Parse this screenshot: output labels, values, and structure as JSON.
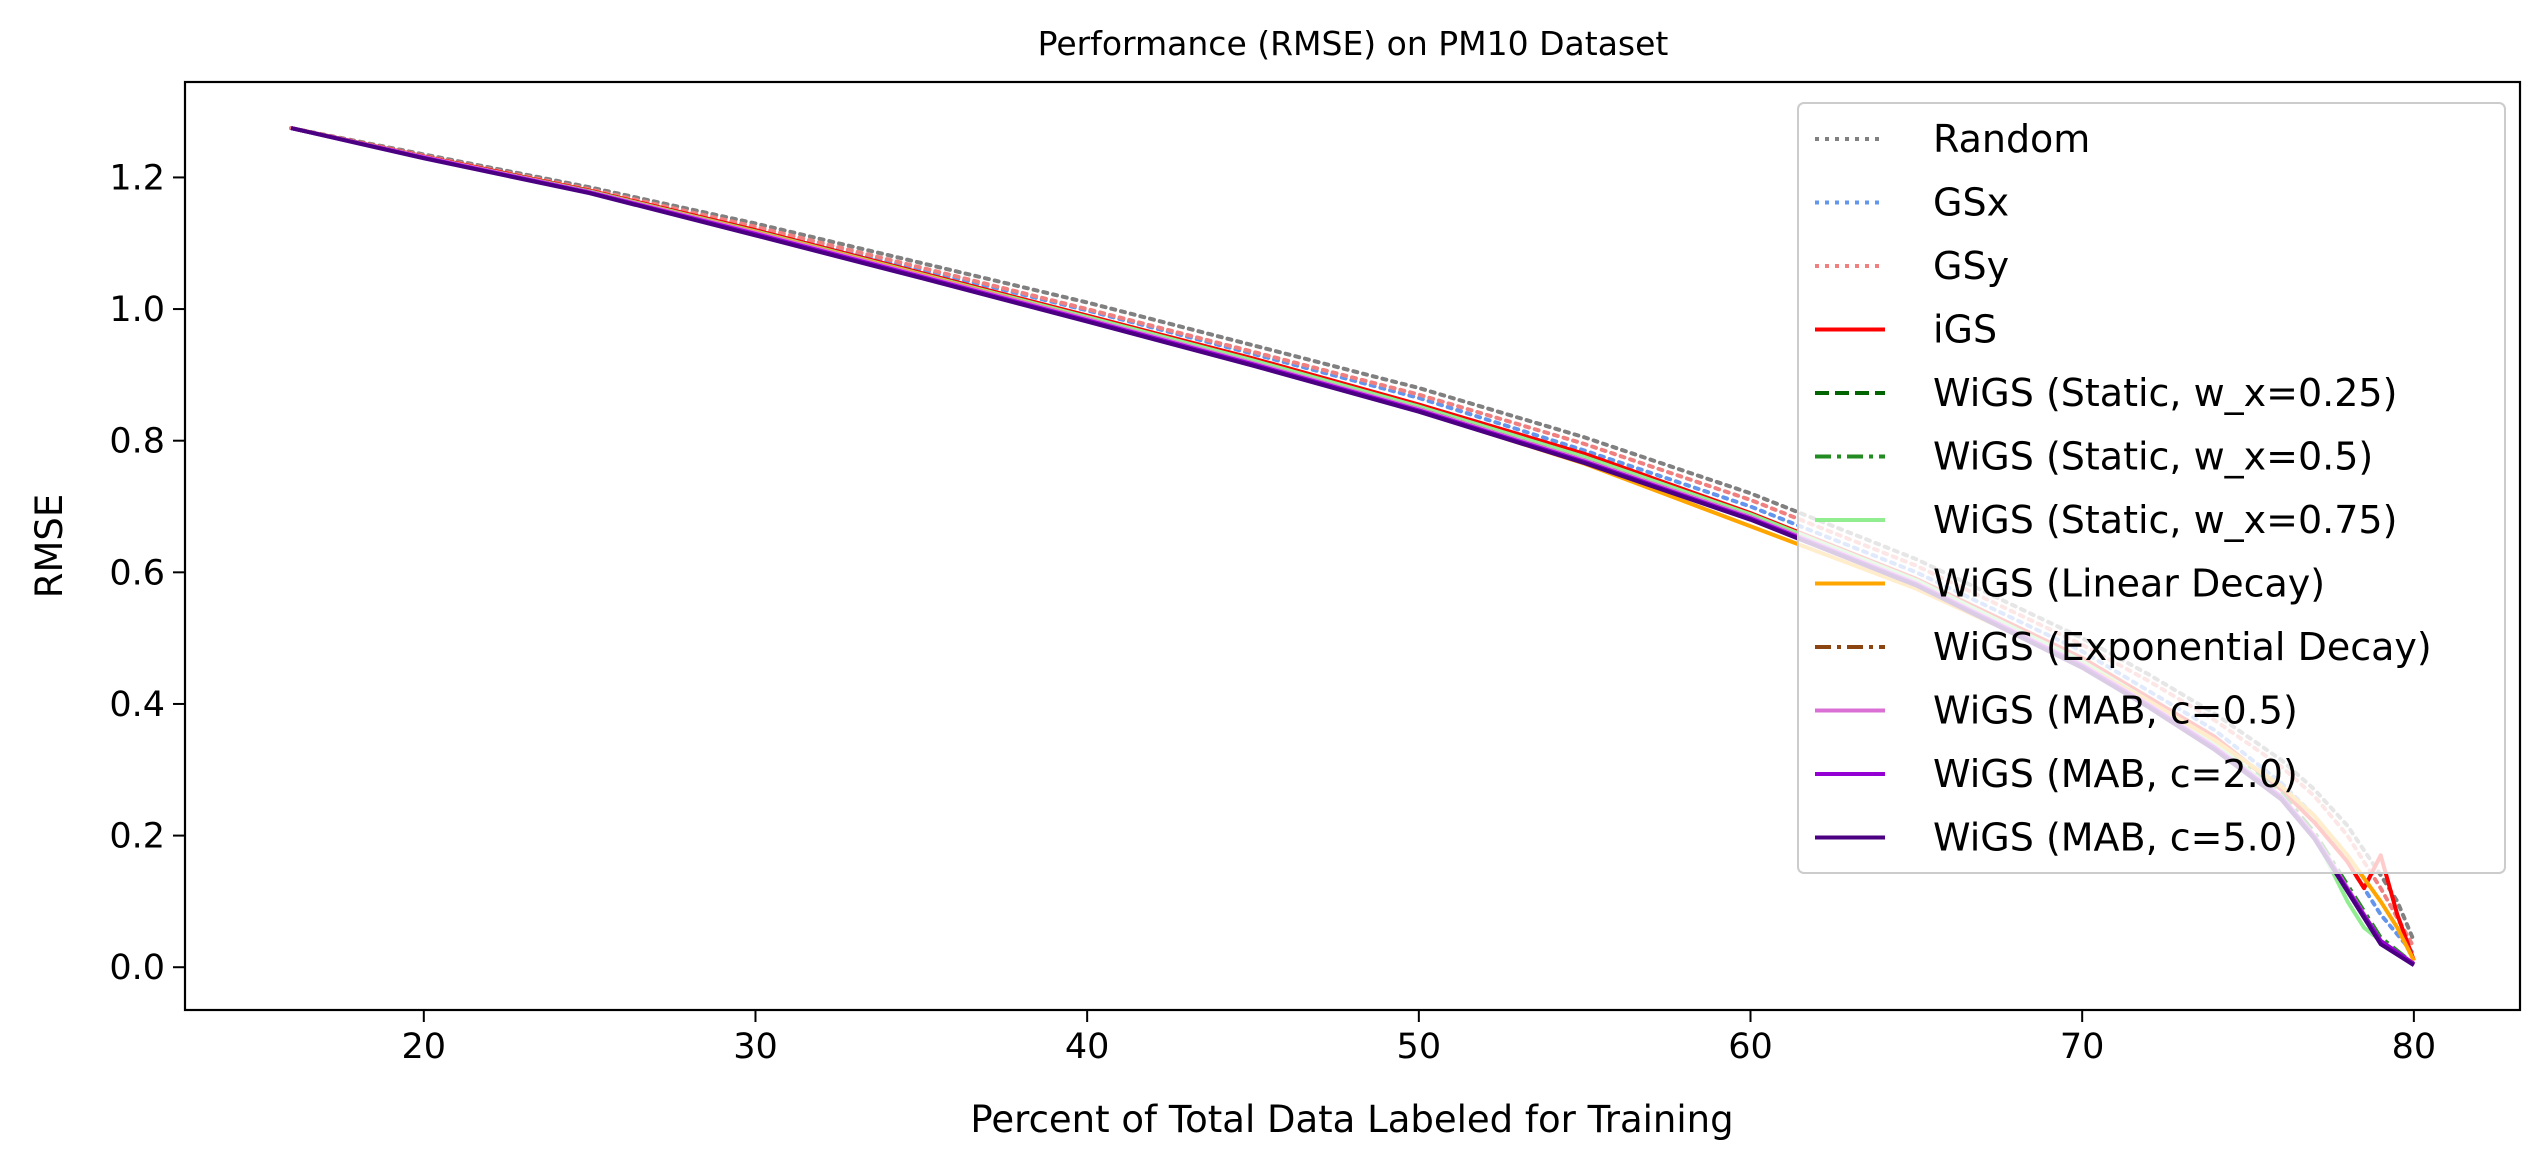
{
  "chart_data": {
    "type": "line",
    "title": "Performance (RMSE) on PM10 Dataset",
    "xlabel": "Percent of Total Data Labeled for Training",
    "ylabel": "RMSE",
    "xlim": [
      12.8,
      83.2
    ],
    "ylim": [
      -0.065,
      1.345
    ],
    "xticks": [
      20,
      30,
      40,
      50,
      60,
      70,
      80
    ],
    "xtick_labels": [
      "20",
      "30",
      "40",
      "50",
      "60",
      "70",
      "80"
    ],
    "yticks": [
      0.0,
      0.2,
      0.4,
      0.6,
      0.8,
      1.0,
      1.2
    ],
    "ytick_labels": [
      "0.0",
      "0.2",
      "0.4",
      "0.6",
      "0.8",
      "1.0",
      "1.2"
    ],
    "grid": false,
    "legend_position": "top-right",
    "series": [
      {
        "name": "Random",
        "color": "#808080",
        "style": "dotted",
        "x": [
          16,
          20,
          25,
          30,
          35,
          40,
          45,
          50,
          55,
          60,
          65,
          70,
          72,
          74,
          76,
          77,
          78,
          79,
          79.5,
          80
        ],
        "y": [
          1.275,
          1.235,
          1.185,
          1.13,
          1.07,
          1.01,
          0.945,
          0.88,
          0.805,
          0.72,
          0.62,
          0.5,
          0.445,
          0.385,
          0.315,
          0.27,
          0.215,
          0.14,
          0.1,
          0.04
        ]
      },
      {
        "name": "GSx",
        "color": "#6495ED",
        "style": "dotted",
        "x": [
          16,
          20,
          25,
          30,
          35,
          40,
          45,
          50,
          55,
          60,
          65,
          70,
          72,
          74,
          76,
          77,
          78,
          79,
          80
        ],
        "y": [
          1.275,
          1.232,
          1.18,
          1.122,
          1.06,
          0.998,
          0.932,
          0.865,
          0.785,
          0.7,
          0.6,
          0.48,
          0.42,
          0.36,
          0.28,
          0.23,
          0.16,
          0.08,
          0.02
        ]
      },
      {
        "name": "GSy",
        "color": "#F08080",
        "style": "dotted",
        "x": [
          16,
          20,
          25,
          30,
          35,
          40,
          45,
          50,
          55,
          60,
          65,
          70,
          72,
          74,
          76,
          77,
          78,
          79,
          80
        ],
        "y": [
          1.275,
          1.233,
          1.182,
          1.125,
          1.063,
          1.0,
          0.935,
          0.87,
          0.795,
          0.71,
          0.61,
          0.49,
          0.435,
          0.375,
          0.305,
          0.26,
          0.2,
          0.12,
          0.03
        ]
      },
      {
        "name": "iGS",
        "color": "#FF0000",
        "style": "solid",
        "x": [
          16,
          20,
          25,
          30,
          35,
          40,
          45,
          50,
          55,
          60,
          65,
          70,
          72,
          74,
          76,
          77,
          78,
          78.5,
          79,
          79.5,
          80
        ],
        "y": [
          1.275,
          1.232,
          1.18,
          1.12,
          1.055,
          0.99,
          0.925,
          0.855,
          0.78,
          0.69,
          0.59,
          0.47,
          0.41,
          0.35,
          0.27,
          0.22,
          0.16,
          0.12,
          0.17,
          0.08,
          0.01
        ]
      },
      {
        "name": "WiGS (Static, w_x=0.25)",
        "color": "#006400",
        "style": "dashed",
        "x": [
          16,
          20,
          25,
          30,
          35,
          40,
          45,
          50,
          55,
          60,
          65,
          70,
          72,
          74,
          76,
          77,
          78,
          79,
          80
        ],
        "y": [
          1.275,
          1.231,
          1.178,
          1.117,
          1.052,
          0.987,
          0.92,
          0.85,
          0.772,
          0.685,
          0.585,
          0.46,
          0.4,
          0.335,
          0.26,
          0.2,
          0.12,
          0.04,
          0.005
        ]
      },
      {
        "name": "WiGS (Static, w_x=0.5)",
        "color": "#228B22",
        "style": "dashdot",
        "x": [
          16,
          20,
          25,
          30,
          35,
          40,
          45,
          50,
          55,
          60,
          65,
          70,
          72,
          74,
          76,
          77,
          78,
          79,
          80
        ],
        "y": [
          1.275,
          1.231,
          1.179,
          1.118,
          1.053,
          0.988,
          0.922,
          0.852,
          0.775,
          0.688,
          0.588,
          0.465,
          0.405,
          0.34,
          0.265,
          0.205,
          0.125,
          0.045,
          0.005
        ]
      },
      {
        "name": "WiGS (Static, w_x=0.75)",
        "color": "#90EE90",
        "style": "solid",
        "x": [
          16,
          20,
          25,
          30,
          35,
          40,
          45,
          50,
          55,
          60,
          65,
          70,
          72,
          74,
          76,
          77,
          78,
          78.5,
          79,
          80
        ],
        "y": [
          1.275,
          1.231,
          1.179,
          1.118,
          1.053,
          0.988,
          0.922,
          0.852,
          0.775,
          0.688,
          0.588,
          0.465,
          0.405,
          0.34,
          0.26,
          0.2,
          0.1,
          0.06,
          0.04,
          0.005
        ]
      },
      {
        "name": "WiGS (Linear Decay)",
        "color": "#FFA500",
        "style": "solid",
        "x": [
          16,
          20,
          25,
          30,
          35,
          40,
          45,
          50,
          55,
          60,
          65,
          70,
          72,
          74,
          76,
          77,
          78,
          79,
          79.5,
          80
        ],
        "y": [
          1.275,
          1.231,
          1.178,
          1.117,
          1.052,
          0.985,
          0.915,
          0.845,
          0.765,
          0.67,
          0.575,
          0.46,
          0.405,
          0.345,
          0.275,
          0.23,
          0.17,
          0.1,
          0.06,
          0.01
        ]
      },
      {
        "name": "WiGS (Exponential Decay)",
        "color": "#8B4513",
        "style": "dashdot",
        "x": [
          16,
          20,
          25,
          30,
          35,
          40,
          45,
          50,
          55,
          60,
          65,
          70,
          72,
          74,
          76,
          77,
          78,
          79,
          80
        ],
        "y": [
          1.275,
          1.231,
          1.178,
          1.115,
          1.05,
          0.983,
          0.917,
          0.848,
          0.77,
          0.684,
          0.583,
          0.458,
          0.398,
          0.333,
          0.258,
          0.198,
          0.118,
          0.04,
          0.005
        ]
      },
      {
        "name": "WiGS (MAB, c=0.5)",
        "color": "#DA70D6",
        "style": "solid",
        "x": [
          16,
          20,
          25,
          30,
          35,
          40,
          45,
          50,
          55,
          60,
          65,
          70,
          72,
          74,
          76,
          77,
          78,
          79,
          80
        ],
        "y": [
          1.275,
          1.231,
          1.178,
          1.116,
          1.051,
          0.985,
          0.918,
          0.848,
          0.77,
          0.684,
          0.584,
          0.46,
          0.4,
          0.335,
          0.26,
          0.2,
          0.12,
          0.04,
          0.005
        ]
      },
      {
        "name": "WiGS (MAB, c=2.0)",
        "color": "#9400D3",
        "style": "solid",
        "x": [
          16,
          20,
          25,
          30,
          35,
          40,
          45,
          50,
          55,
          60,
          65,
          70,
          72,
          74,
          76,
          77,
          78,
          79,
          80
        ],
        "y": [
          1.275,
          1.23,
          1.177,
          1.114,
          1.049,
          0.983,
          0.916,
          0.846,
          0.768,
          0.682,
          0.582,
          0.458,
          0.398,
          0.333,
          0.258,
          0.198,
          0.118,
          0.04,
          0.005
        ]
      },
      {
        "name": "WiGS (MAB, c=5.0)",
        "color": "#4B0082",
        "style": "solid",
        "x": [
          16,
          20,
          25,
          30,
          35,
          40,
          45,
          50,
          55,
          60,
          65,
          70,
          72,
          74,
          76,
          77,
          78,
          79,
          80
        ],
        "y": [
          1.275,
          1.229,
          1.176,
          1.112,
          1.047,
          0.981,
          0.914,
          0.844,
          0.766,
          0.68,
          0.58,
          0.455,
          0.395,
          0.33,
          0.255,
          0.195,
          0.115,
          0.035,
          0.003
        ]
      }
    ]
  }
}
